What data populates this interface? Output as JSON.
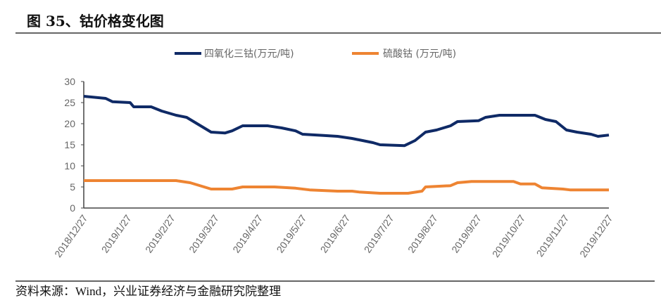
{
  "title": "图 35、钴价格变化图",
  "source": "资料来源：Wind，兴业证券经济与金融研究院整理",
  "chart_data": {
    "type": "line",
    "title": "图 35、钴价格变化图",
    "xlabel": "",
    "ylabel": "",
    "ylim": [
      0,
      30
    ],
    "yticks": [
      "0",
      "5",
      "10",
      "15",
      "20",
      "25",
      "30"
    ],
    "xlim": [
      0,
      12
    ],
    "x_unit": "months since 2018/12/27",
    "categories": [
      "2018/12/27",
      "2019/1/27",
      "2019/2/27",
      "2019/3/27",
      "2019/4/27",
      "2019/5/27",
      "2019/6/27",
      "2019/7/27",
      "2019/8/27",
      "2019/9/27",
      "2019/10/27",
      "2019/11/27",
      "2019/12/27"
    ],
    "grid": false,
    "legend_position": "top-center",
    "series": [
      {
        "name": "四氧化三钴(万元/吨)",
        "color": "#0f2a66",
        "x": [
          0,
          0.5,
          0.66,
          1.06,
          1.14,
          1.54,
          1.78,
          2.11,
          2.35,
          2.59,
          2.91,
          3.23,
          3.39,
          3.63,
          4.2,
          4.52,
          4.84,
          5.0,
          5.48,
          5.8,
          6.13,
          6.61,
          6.77,
          7.33,
          7.57,
          7.81,
          8.06,
          8.38,
          8.54,
          9.02,
          9.18,
          9.5,
          10.31,
          10.55,
          10.79,
          11.03,
          11.27,
          11.59,
          11.75,
          12
        ],
        "values": [
          26.5,
          26,
          25.2,
          25,
          24,
          24,
          23,
          22,
          21.5,
          20,
          18,
          17.8,
          18.3,
          19.5,
          19.5,
          19,
          18.3,
          17.5,
          17.2,
          17,
          16.5,
          15.5,
          15,
          14.8,
          16,
          18,
          18.5,
          19.5,
          20.5,
          20.7,
          21.5,
          22,
          22,
          21,
          20.5,
          18.5,
          18,
          17.5,
          17,
          17.3
        ]
      },
      {
        "name": "硫酸钴 (万元/吨)",
        "color": "#ee8432",
        "x": [
          0,
          2.11,
          2.43,
          2.75,
          2.91,
          3.39,
          3.63,
          4.36,
          4.84,
          5.16,
          5.8,
          6.13,
          6.29,
          6.77,
          7.41,
          7.73,
          7.81,
          8.38,
          8.54,
          8.86,
          9.82,
          9.98,
          10.31,
          10.47,
          10.95,
          11.11,
          12
        ],
        "values": [
          6.5,
          6.5,
          6,
          5,
          4.5,
          4.5,
          5,
          5,
          4.7,
          4.3,
          4,
          4,
          3.8,
          3.5,
          3.5,
          4,
          5,
          5.3,
          6,
          6.3,
          6.3,
          5.7,
          5.7,
          4.8,
          4.5,
          4.3,
          4.3
        ]
      }
    ]
  }
}
